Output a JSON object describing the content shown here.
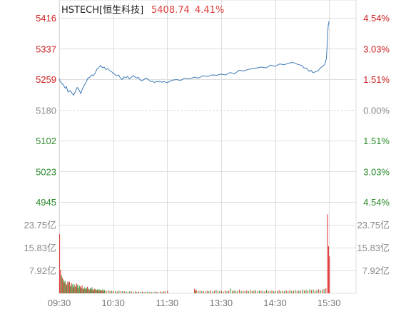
{
  "chart_data": {
    "type": "line",
    "header": {
      "name": "HSTECH[恒生科技]",
      "price": "5408.74",
      "change": "4.41%"
    },
    "price_axis": {
      "ticks": [
        5416,
        5337,
        5259,
        5180,
        5102,
        5023,
        4945
      ],
      "tick_labels": [
        "5416",
        "5337",
        "5259",
        "5180",
        "5102",
        "5023",
        "4945"
      ],
      "pct_labels": [
        "4.54%",
        "3.03%",
        "1.51%",
        "0.00%",
        "1.51%",
        "3.03%",
        "4.54%"
      ],
      "prev_close": 5180,
      "ylim": [
        4945,
        5416
      ]
    },
    "volume_axis": {
      "tick_labels": [
        "23.75亿",
        "15.83亿",
        "7.92亿"
      ],
      "ticks": [
        23.75,
        15.83,
        7.92
      ],
      "unit": "亿",
      "ylim": [
        0,
        31.66
      ]
    },
    "x_axis": {
      "ticks": [
        "09:30",
        "10:30",
        "11:30",
        "13:30",
        "14:30",
        "15:30"
      ],
      "session_minutes": 330
    },
    "series": [
      {
        "x": [
          0,
          1,
          2,
          3,
          4,
          5,
          6,
          7,
          8,
          9,
          10,
          12,
          14,
          16,
          18,
          20,
          22,
          24,
          26,
          28,
          30,
          32,
          34,
          36,
          38,
          40,
          42,
          44,
          46,
          48,
          50,
          52,
          54,
          56,
          58,
          60,
          62,
          64,
          66,
          68,
          70,
          72,
          74,
          76,
          78,
          80,
          82,
          84,
          86,
          88,
          90,
          92,
          94,
          96,
          98,
          100,
          102,
          104,
          106,
          108,
          110,
          112,
          114,
          116,
          118,
          120,
          125,
          130,
          135,
          140,
          145,
          150,
          155,
          160,
          165,
          170,
          175,
          180,
          185,
          190,
          195,
          200,
          205,
          210,
          215,
          220,
          225,
          230,
          235,
          240,
          245,
          250,
          255,
          260,
          265,
          270,
          272,
          275,
          278,
          280,
          282,
          285,
          288,
          290,
          292,
          295,
          297,
          298,
          299,
          300
        ],
        "values": [
          5260,
          5254,
          5250,
          5248,
          5246,
          5244,
          5238,
          5236,
          5240,
          5232,
          5226,
          5230,
          5224,
          5218,
          5228,
          5238,
          5232,
          5222,
          5236,
          5244,
          5252,
          5262,
          5264,
          5270,
          5268,
          5275,
          5285,
          5289,
          5294,
          5288,
          5290,
          5284,
          5286,
          5281,
          5279,
          5274,
          5271,
          5268,
          5270,
          5262,
          5258,
          5265,
          5262,
          5266,
          5260,
          5263,
          5268,
          5265,
          5262,
          5264,
          5257,
          5255,
          5258,
          5262,
          5260,
          5256,
          5253,
          5254,
          5250,
          5254,
          5252,
          5254,
          5251,
          5253,
          5252,
          5250,
          5256,
          5258,
          5256,
          5262,
          5260,
          5264,
          5262,
          5268,
          5266,
          5270,
          5269,
          5272,
          5270,
          5276,
          5273,
          5282,
          5280,
          5284,
          5286,
          5288,
          5290,
          5288,
          5295,
          5292,
          5298,
          5296,
          5300,
          5302,
          5297,
          5294,
          5288,
          5287,
          5279,
          5282,
          5276,
          5278,
          5281,
          5287,
          5291,
          5296,
          5311,
          5352,
          5395,
          5408
        ]
      }
    ],
    "volume": {
      "bars": [
        {
          "x": 0,
          "v": 20.5,
          "up": true
        },
        {
          "x": 1,
          "v": 8.1,
          "up": true
        },
        {
          "x": 2,
          "v": 6.2,
          "up": false
        },
        {
          "x": 3,
          "v": 5.4,
          "up": true
        },
        {
          "x": 4,
          "v": 4.8,
          "up": false
        },
        {
          "x": 5,
          "v": 3.9,
          "up": true
        },
        {
          "x": 6,
          "v": 4.3,
          "up": false
        },
        {
          "x": 7,
          "v": 3.3,
          "up": true
        },
        {
          "x": 8,
          "v": 2.9,
          "up": false
        },
        {
          "x": 9,
          "v": 4.1,
          "up": true
        },
        {
          "x": 10,
          "v": 3.8,
          "up": false
        },
        {
          "x": 11,
          "v": 4.0,
          "up": true
        },
        {
          "x": 12,
          "v": 2.4,
          "up": false
        },
        {
          "x": 13,
          "v": 3.6,
          "up": true
        },
        {
          "x": 14,
          "v": 3.1,
          "up": false
        },
        {
          "x": 15,
          "v": 2.1,
          "up": true
        },
        {
          "x": 16,
          "v": 3.2,
          "up": false
        },
        {
          "x": 17,
          "v": 2.8,
          "up": true
        },
        {
          "x": 18,
          "v": 2.2,
          "up": false
        },
        {
          "x": 19,
          "v": 3.4,
          "up": true
        },
        {
          "x": 20,
          "v": 3.0,
          "up": false
        },
        {
          "x": 21,
          "v": 1.8,
          "up": true
        },
        {
          "x": 22,
          "v": 2.6,
          "up": false
        },
        {
          "x": 23,
          "v": 2.4,
          "up": true
        },
        {
          "x": 24,
          "v": 1.9,
          "up": false
        },
        {
          "x": 25,
          "v": 2.7,
          "up": true
        },
        {
          "x": 26,
          "v": 1.5,
          "up": false
        },
        {
          "x": 27,
          "v": 1.7,
          "up": true
        },
        {
          "x": 28,
          "v": 2.1,
          "up": false
        },
        {
          "x": 29,
          "v": 1.4,
          "up": true
        },
        {
          "x": 30,
          "v": 1.9,
          "up": false
        },
        {
          "x": 31,
          "v": 2.3,
          "up": true
        },
        {
          "x": 32,
          "v": 1.6,
          "up": false
        },
        {
          "x": 33,
          "v": 1.2,
          "up": true
        },
        {
          "x": 34,
          "v": 1.8,
          "up": false
        },
        {
          "x": 35,
          "v": 1.5,
          "up": true
        },
        {
          "x": 36,
          "v": 2.1,
          "up": false
        },
        {
          "x": 37,
          "v": 1.3,
          "up": true
        },
        {
          "x": 38,
          "v": 1.0,
          "up": false
        },
        {
          "x": 39,
          "v": 1.6,
          "up": true
        },
        {
          "x": 40,
          "v": 1.4,
          "up": false
        },
        {
          "x": 41,
          "v": 1.1,
          "up": true
        },
        {
          "x": 42,
          "v": 1.3,
          "up": false
        },
        {
          "x": 43,
          "v": 1.0,
          "up": true
        },
        {
          "x": 44,
          "v": 1.5,
          "up": false
        },
        {
          "x": 45,
          "v": 0.9,
          "up": true
        },
        {
          "x": 46,
          "v": 1.2,
          "up": false
        },
        {
          "x": 47,
          "v": 1.0,
          "up": true
        },
        {
          "x": 48,
          "v": 1.4,
          "up": false
        },
        {
          "x": 49,
          "v": 0.8,
          "up": true
        },
        {
          "x": 50,
          "v": 1.1,
          "up": false
        },
        {
          "x": 52,
          "v": 0.9,
          "up": true
        },
        {
          "x": 54,
          "v": 1.0,
          "up": false
        },
        {
          "x": 56,
          "v": 0.8,
          "up": true
        },
        {
          "x": 58,
          "v": 0.9,
          "up": false
        },
        {
          "x": 60,
          "v": 0.7,
          "up": true
        },
        {
          "x": 62,
          "v": 0.8,
          "up": false
        },
        {
          "x": 64,
          "v": 0.6,
          "up": true
        },
        {
          "x": 66,
          "v": 0.9,
          "up": false
        },
        {
          "x": 68,
          "v": 0.7,
          "up": true
        },
        {
          "x": 70,
          "v": 0.8,
          "up": false
        },
        {
          "x": 72,
          "v": 0.6,
          "up": true
        },
        {
          "x": 74,
          "v": 0.7,
          "up": false
        },
        {
          "x": 76,
          "v": 0.5,
          "up": true
        },
        {
          "x": 78,
          "v": 0.7,
          "up": false
        },
        {
          "x": 80,
          "v": 0.6,
          "up": true
        },
        {
          "x": 82,
          "v": 0.5,
          "up": false
        },
        {
          "x": 84,
          "v": 0.7,
          "up": true
        },
        {
          "x": 86,
          "v": 0.5,
          "up": false
        },
        {
          "x": 88,
          "v": 0.6,
          "up": true
        },
        {
          "x": 90,
          "v": 0.5,
          "up": false
        },
        {
          "x": 92,
          "v": 0.6,
          "up": true
        },
        {
          "x": 94,
          "v": 0.4,
          "up": false
        },
        {
          "x": 96,
          "v": 0.5,
          "up": true
        },
        {
          "x": 98,
          "v": 0.6,
          "up": false
        },
        {
          "x": 100,
          "v": 0.4,
          "up": true
        },
        {
          "x": 102,
          "v": 0.5,
          "up": false
        },
        {
          "x": 104,
          "v": 0.4,
          "up": true
        },
        {
          "x": 106,
          "v": 0.6,
          "up": false
        },
        {
          "x": 108,
          "v": 0.5,
          "up": true
        },
        {
          "x": 110,
          "v": 0.4,
          "up": false
        },
        {
          "x": 112,
          "v": 0.6,
          "up": true
        },
        {
          "x": 114,
          "v": 0.5,
          "up": false
        },
        {
          "x": 116,
          "v": 0.7,
          "up": true
        },
        {
          "x": 118,
          "v": 0.6,
          "up": false
        },
        {
          "x": 120,
          "v": 0.9,
          "up": true
        },
        {
          "x": 150,
          "v": 1.6,
          "up": true
        },
        {
          "x": 151,
          "v": 1.0,
          "up": false
        },
        {
          "x": 152,
          "v": 1.2,
          "up": true
        },
        {
          "x": 154,
          "v": 0.8,
          "up": false
        },
        {
          "x": 156,
          "v": 0.9,
          "up": true
        },
        {
          "x": 158,
          "v": 0.7,
          "up": false
        },
        {
          "x": 160,
          "v": 0.8,
          "up": true
        },
        {
          "x": 162,
          "v": 0.6,
          "up": false
        },
        {
          "x": 164,
          "v": 0.9,
          "up": true
        },
        {
          "x": 166,
          "v": 0.7,
          "up": false
        },
        {
          "x": 168,
          "v": 1.0,
          "up": true
        },
        {
          "x": 170,
          "v": 0.6,
          "up": false
        },
        {
          "x": 172,
          "v": 0.8,
          "up": true
        },
        {
          "x": 174,
          "v": 1.2,
          "up": false
        },
        {
          "x": 176,
          "v": 0.7,
          "up": true
        },
        {
          "x": 178,
          "v": 0.9,
          "up": false
        },
        {
          "x": 180,
          "v": 0.8,
          "up": true
        },
        {
          "x": 182,
          "v": 0.6,
          "up": false
        },
        {
          "x": 184,
          "v": 1.0,
          "up": true
        },
        {
          "x": 186,
          "v": 0.7,
          "up": false
        },
        {
          "x": 188,
          "v": 0.9,
          "up": true
        },
        {
          "x": 190,
          "v": 1.6,
          "up": false
        },
        {
          "x": 192,
          "v": 0.8,
          "up": true
        },
        {
          "x": 194,
          "v": 1.1,
          "up": false
        },
        {
          "x": 196,
          "v": 0.7,
          "up": true
        },
        {
          "x": 198,
          "v": 0.9,
          "up": false
        },
        {
          "x": 200,
          "v": 1.3,
          "up": true
        },
        {
          "x": 202,
          "v": 0.7,
          "up": false
        },
        {
          "x": 204,
          "v": 0.9,
          "up": true
        },
        {
          "x": 206,
          "v": 0.8,
          "up": false
        },
        {
          "x": 208,
          "v": 1.0,
          "up": true
        },
        {
          "x": 210,
          "v": 0.7,
          "up": false
        },
        {
          "x": 212,
          "v": 1.2,
          "up": true
        },
        {
          "x": 214,
          "v": 0.8,
          "up": false
        },
        {
          "x": 216,
          "v": 0.9,
          "up": true
        },
        {
          "x": 218,
          "v": 1.1,
          "up": false
        },
        {
          "x": 220,
          "v": 0.7,
          "up": true
        },
        {
          "x": 222,
          "v": 1.0,
          "up": false
        },
        {
          "x": 224,
          "v": 0.8,
          "up": true
        },
        {
          "x": 226,
          "v": 0.9,
          "up": false
        },
        {
          "x": 228,
          "v": 0.7,
          "up": true
        },
        {
          "x": 230,
          "v": 1.2,
          "up": false
        },
        {
          "x": 232,
          "v": 0.8,
          "up": true
        },
        {
          "x": 234,
          "v": 0.9,
          "up": false
        },
        {
          "x": 236,
          "v": 1.0,
          "up": true
        },
        {
          "x": 238,
          "v": 0.7,
          "up": false
        },
        {
          "x": 240,
          "v": 0.9,
          "up": true
        },
        {
          "x": 242,
          "v": 0.8,
          "up": false
        },
        {
          "x": 244,
          "v": 1.1,
          "up": true
        },
        {
          "x": 246,
          "v": 0.7,
          "up": false
        },
        {
          "x": 248,
          "v": 0.9,
          "up": true
        },
        {
          "x": 250,
          "v": 0.8,
          "up": false
        },
        {
          "x": 252,
          "v": 1.0,
          "up": true
        },
        {
          "x": 254,
          "v": 0.7,
          "up": false
        },
        {
          "x": 256,
          "v": 1.2,
          "up": true
        },
        {
          "x": 258,
          "v": 0.8,
          "up": false
        },
        {
          "x": 260,
          "v": 0.9,
          "up": true
        },
        {
          "x": 262,
          "v": 1.1,
          "up": false
        },
        {
          "x": 264,
          "v": 0.8,
          "up": true
        },
        {
          "x": 266,
          "v": 1.0,
          "up": false
        },
        {
          "x": 268,
          "v": 0.9,
          "up": true
        },
        {
          "x": 270,
          "v": 1.3,
          "up": false
        },
        {
          "x": 272,
          "v": 1.0,
          "up": true
        },
        {
          "x": 274,
          "v": 1.2,
          "up": false
        },
        {
          "x": 276,
          "v": 0.9,
          "up": true
        },
        {
          "x": 278,
          "v": 1.4,
          "up": false
        },
        {
          "x": 280,
          "v": 1.1,
          "up": true
        },
        {
          "x": 282,
          "v": 1.3,
          "up": false
        },
        {
          "x": 284,
          "v": 1.0,
          "up": true
        },
        {
          "x": 286,
          "v": 1.2,
          "up": false
        },
        {
          "x": 288,
          "v": 1.4,
          "up": true
        },
        {
          "x": 290,
          "v": 1.1,
          "up": false
        },
        {
          "x": 292,
          "v": 1.3,
          "up": true
        },
        {
          "x": 294,
          "v": 1.5,
          "up": false
        },
        {
          "x": 296,
          "v": 1.8,
          "up": true
        },
        {
          "x": 298,
          "v": 27.4,
          "up": true
        },
        {
          "x": 299,
          "v": 16.3,
          "up": true
        },
        {
          "x": 300,
          "v": 12.8,
          "up": true
        }
      ]
    },
    "colors": {
      "up": "#e03c3c",
      "down": "#2e9a2e",
      "neutral": "#888888",
      "line": "#3d7ab8",
      "grid": "#dddddd",
      "price_header": "#e03c3c",
      "up_axis": "#cc2222",
      "down_axis": "#2b8a2b"
    },
    "legend": "none",
    "grid": true
  }
}
